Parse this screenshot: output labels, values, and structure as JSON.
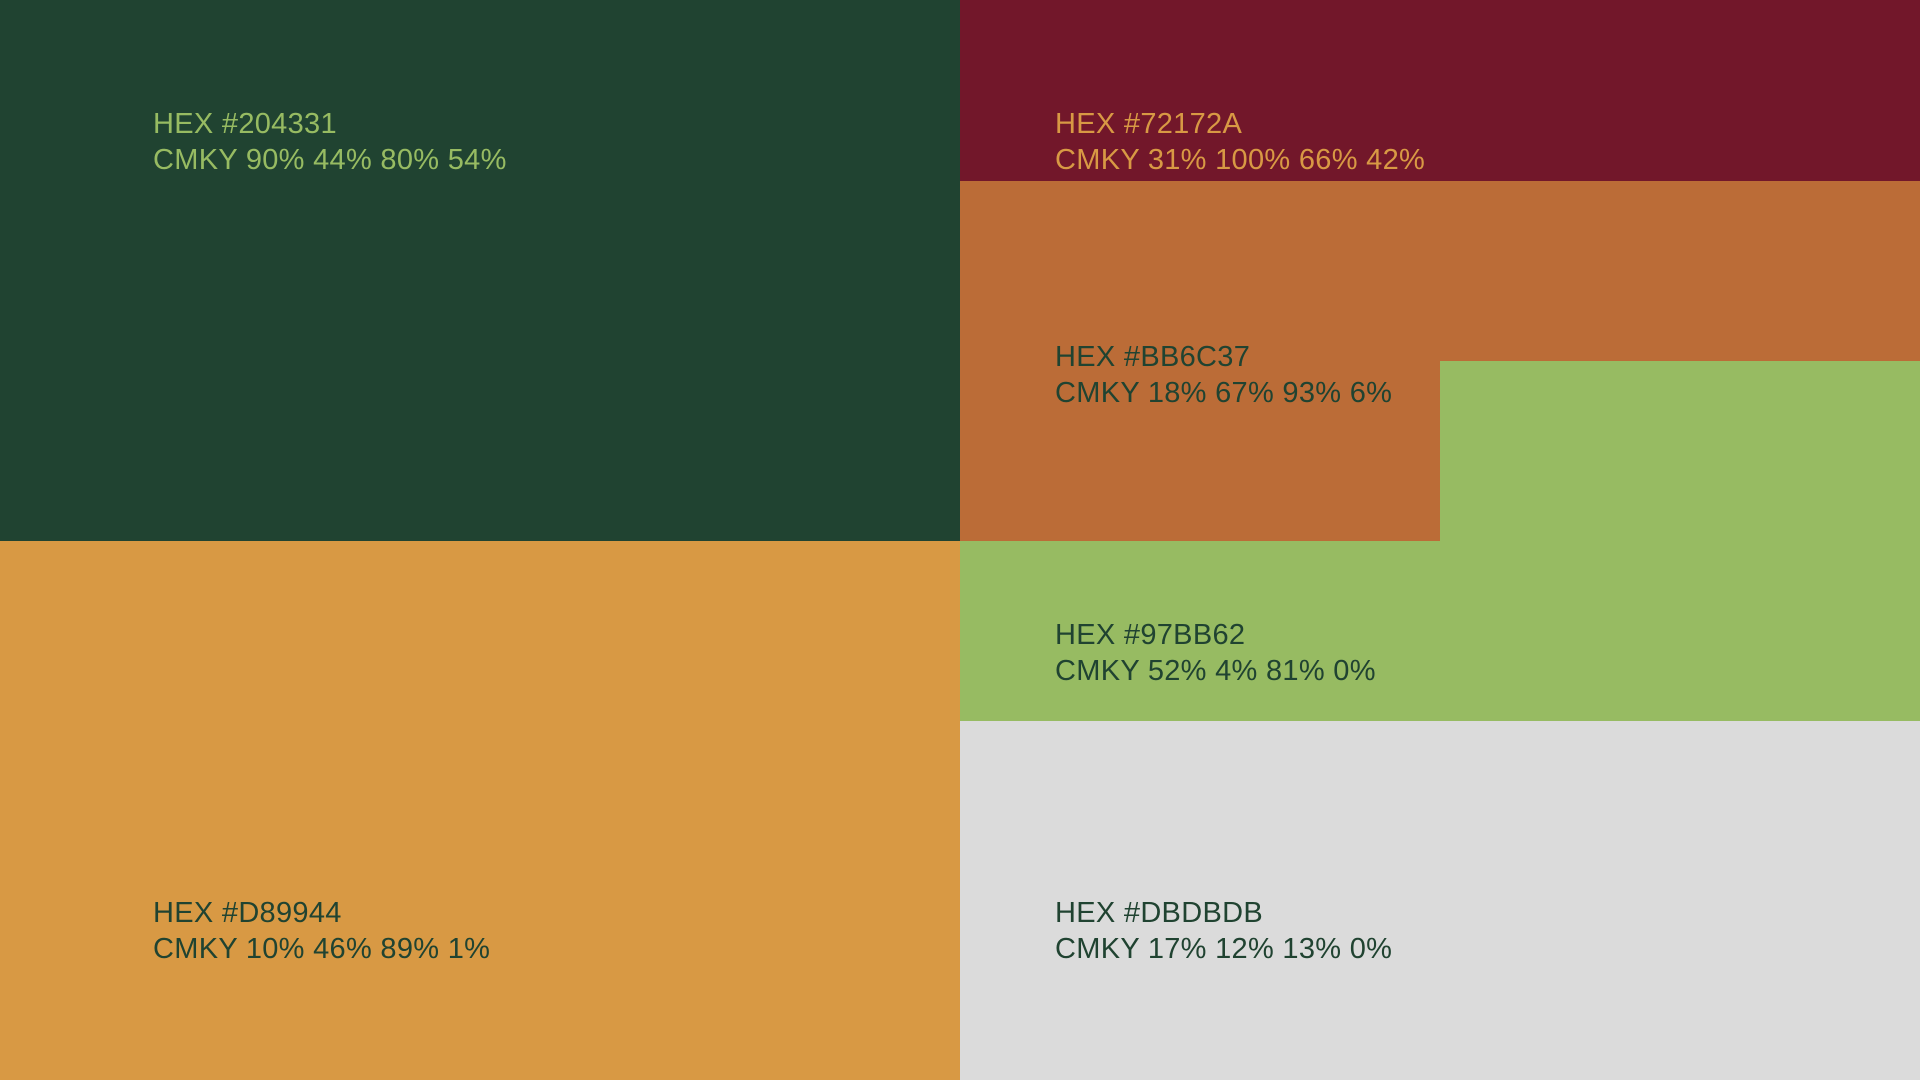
{
  "swatches": [
    {
      "id": "green-dark",
      "hex_label": "HEX #204331",
      "cmyk_label": "CMKY 90% 44% 80% 54%",
      "fill": "#204331",
      "text_color": "#97BB62"
    },
    {
      "id": "burgundy",
      "hex_label": "HEX #72172A",
      "cmyk_label": "CMKY 31% 100% 66% 42%",
      "fill": "#72172A",
      "text_color": "#D89944"
    },
    {
      "id": "copper",
      "hex_label": "HEX #BB6C37",
      "cmyk_label": "CMKY 18% 67% 93% 6%",
      "fill": "#BB6C37",
      "text_color": "#204331"
    },
    {
      "id": "green-light",
      "hex_label": "HEX #97BB62",
      "cmyk_label": "CMKY 52% 4% 81% 0%",
      "fill": "#97BB62",
      "text_color": "#204331"
    },
    {
      "id": "mustard",
      "hex_label": "HEX #D89944",
      "cmyk_label": "CMKY 10% 46% 89% 1%",
      "fill": "#D89944",
      "text_color": "#204331"
    },
    {
      "id": "grey",
      "hex_label": "HEX #DBDBDB",
      "cmyk_label": "CMKY 17% 12% 13% 0%",
      "fill": "#DBDBDB",
      "text_color": "#204331"
    }
  ]
}
